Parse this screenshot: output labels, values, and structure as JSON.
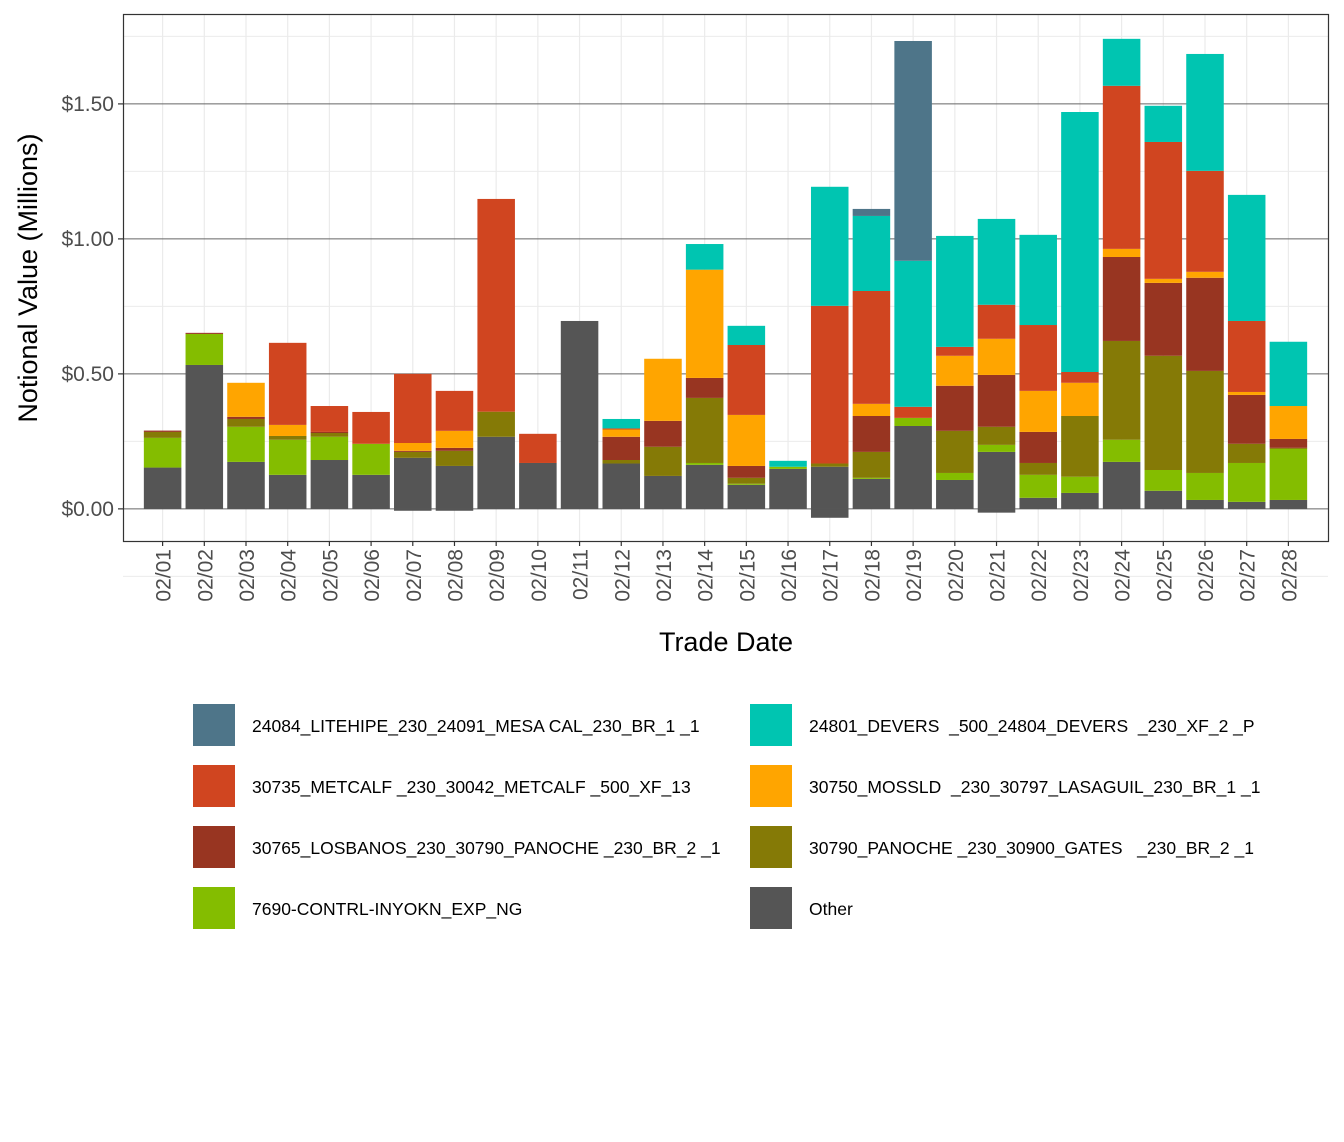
{
  "chart_data": {
    "type": "bar",
    "stacked": true,
    "title": "",
    "xlabel": "Trade Date",
    "ylabel": "Notional Value (Millions)",
    "ylim": [
      -0.119,
      1.833
    ],
    "yticks": [
      0,
      0.5,
      1.0,
      1.5
    ],
    "ytick_labels": [
      "$0.00",
      "$0.50",
      "$1.00",
      "$1.50"
    ],
    "grid": true,
    "legend_position": "bottom",
    "categories": [
      "02/01",
      "02/02",
      "02/03",
      "02/04",
      "02/05",
      "02/06",
      "02/07",
      "02/08",
      "02/09",
      "02/10",
      "02/11",
      "02/12",
      "02/13",
      "02/14",
      "02/15",
      "02/16",
      "02/17",
      "02/18",
      "02/19",
      "02/20",
      "02/21",
      "02/22",
      "02/23",
      "02/24",
      "02/25",
      "02/26",
      "02/27",
      "02/28"
    ],
    "series": [
      {
        "name": "Other",
        "color": "#555555",
        "values": [
          0.153,
          0.533,
          0.174,
          0.126,
          0.181,
          0.126,
          0.189,
          0.159,
          0.267,
          0.17,
          0.696,
          0.168,
          0.122,
          0.163,
          0.089,
          0.148,
          0.156,
          0.111,
          0.307,
          0.107,
          0.211,
          0.041,
          0.059,
          0.174,
          0.067,
          0.033,
          0.026,
          0.033
        ],
        "negative_values": [
          0,
          0,
          0,
          0,
          0,
          0,
          -0.007,
          -0.007,
          0,
          0,
          0,
          0,
          0,
          0,
          0,
          0,
          -0.033,
          0,
          0,
          0,
          -0.014,
          0,
          0,
          0,
          0,
          0,
          0,
          0
        ]
      },
      {
        "name": "7690-CONTRL-INYOKN_EXP_NG",
        "color": "#84BD00",
        "values": [
          0.11,
          0.115,
          0.13,
          0.13,
          0.086,
          0.115,
          0,
          0,
          0,
          0,
          0,
          0,
          0,
          0.007,
          0.004,
          0.008,
          0,
          0.004,
          0.03,
          0.026,
          0.026,
          0.085,
          0.06,
          0.082,
          0.077,
          0.1,
          0.144,
          0.189
        ]
      },
      {
        "name": "30790_PANOCHE _230_30900_GATES   _230_BR_2 _1",
        "color": "#857A06",
        "values": [
          0.022,
          0,
          0.029,
          0.014,
          0.014,
          0,
          0.022,
          0.056,
          0.093,
          0,
          0,
          0.013,
          0.108,
          0.241,
          0.022,
          0,
          0.012,
          0.096,
          0,
          0.156,
          0.067,
          0.044,
          0.225,
          0.366,
          0.423,
          0.378,
          0.071,
          0.004
        ]
      },
      {
        "name": "30765_LOSBANOS_230_30790_PANOCHE _230_BR_2 _1",
        "color": "#983521",
        "values": [
          0.005,
          0.004,
          0.008,
          0,
          0.004,
          0,
          0.004,
          0.011,
          0,
          0,
          0,
          0.086,
          0.096,
          0.074,
          0.044,
          0,
          0,
          0.133,
          0,
          0.167,
          0.192,
          0.115,
          0,
          0.311,
          0.27,
          0.345,
          0.181,
          0.033
        ]
      },
      {
        "name": "30750_MOSSLD  _230_30797_LASAGUIL_230_BR_1 _1",
        "color": "#FFA500",
        "values": [
          0,
          0,
          0.126,
          0.041,
          0,
          0,
          0.029,
          0.063,
          0,
          0,
          0,
          0.027,
          0.23,
          0.401,
          0.189,
          0,
          0,
          0.045,
          0,
          0.111,
          0.134,
          0.152,
          0.123,
          0.03,
          0.015,
          0.022,
          0.011,
          0.122
        ]
      },
      {
        "name": "30735_METCALF _230_30042_METCALF _500_XF_13",
        "color": "#D04520",
        "values": [
          0,
          0,
          0,
          0.304,
          0.096,
          0.118,
          0.256,
          0.148,
          0.788,
          0.108,
          0,
          0.004,
          0,
          0,
          0.259,
          0,
          0.584,
          0.418,
          0.041,
          0.033,
          0.126,
          0.244,
          0.04,
          0.604,
          0.507,
          0.374,
          0.263,
          0
        ]
      },
      {
        "name": "24801_DEVERS  _500_24804_DEVERS  _230_XF_2 _P",
        "color": "#00C5B1",
        "values": [
          0,
          0,
          0,
          0,
          0,
          0,
          0,
          0,
          0,
          0,
          0,
          0.035,
          0,
          0.095,
          0.071,
          0.022,
          0.441,
          0.278,
          0.541,
          0.411,
          0.318,
          0.334,
          0.963,
          0.174,
          0.134,
          0.433,
          0.467,
          0.238
        ]
      },
      {
        "name": "24084_LITEHIPE_230_24091_MESA CAL_230_BR_1 _1",
        "color": "#4E7589",
        "values": [
          0,
          0,
          0,
          0,
          0,
          0,
          0,
          0,
          0,
          0,
          0,
          0,
          0,
          0,
          0,
          0,
          0,
          0.026,
          0.814,
          0,
          0,
          0,
          0,
          0,
          0,
          0,
          0,
          0
        ]
      }
    ],
    "legend_order": [
      "24084_LITEHIPE_230_24091_MESA CAL_230_BR_1 _1",
      "24801_DEVERS  _500_24804_DEVERS  _230_XF_2 _P",
      "30735_METCALF _230_30042_METCALF _500_XF_13",
      "30750_MOSSLD  _230_30797_LASAGUIL_230_BR_1 _1",
      "30765_LOSBANOS_230_30790_PANOCHE _230_BR_2 _1",
      "30790_PANOCHE _230_30900_GATES   _230_BR_2 _1",
      "7690-CONTRL-INYOKN_EXP_NG",
      "Other"
    ]
  }
}
